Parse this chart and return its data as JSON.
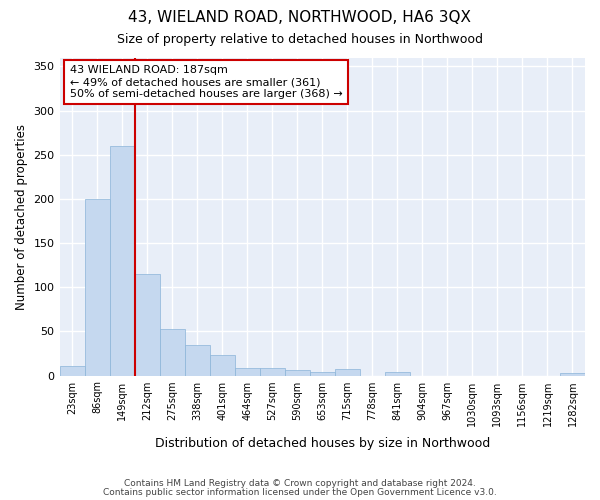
{
  "title": "43, WIELAND ROAD, NORTHWOOD, HA6 3QX",
  "subtitle": "Size of property relative to detached houses in Northwood",
  "xlabel": "Distribution of detached houses by size in Northwood",
  "ylabel": "Number of detached properties",
  "categories": [
    "23sqm",
    "86sqm",
    "149sqm",
    "212sqm",
    "275sqm",
    "338sqm",
    "401sqm",
    "464sqm",
    "527sqm",
    "590sqm",
    "653sqm",
    "715sqm",
    "778sqm",
    "841sqm",
    "904sqm",
    "967sqm",
    "1030sqm",
    "1093sqm",
    "1156sqm",
    "1219sqm",
    "1282sqm"
  ],
  "values": [
    11,
    200,
    260,
    115,
    53,
    35,
    23,
    9,
    8,
    6,
    4,
    7,
    0,
    4,
    0,
    0,
    0,
    0,
    0,
    0,
    3
  ],
  "bar_color": "#c5d8ef",
  "bar_edge_color": "#8ab4d8",
  "vline_x": 2.5,
  "vline_color": "#cc0000",
  "annotation_text": "43 WIELAND ROAD: 187sqm\n← 49% of detached houses are smaller (361)\n50% of semi-detached houses are larger (368) →",
  "annotation_box_color": "#ffffff",
  "annotation_box_edge_color": "#cc0000",
  "ylim": [
    0,
    360
  ],
  "yticks": [
    0,
    50,
    100,
    150,
    200,
    250,
    300,
    350
  ],
  "plot_bg_color": "#e8eef8",
  "grid_color": "#ffffff",
  "fig_bg_color": "#ffffff",
  "footer_line1": "Contains HM Land Registry data © Crown copyright and database right 2024.",
  "footer_line2": "Contains public sector information licensed under the Open Government Licence v3.0."
}
